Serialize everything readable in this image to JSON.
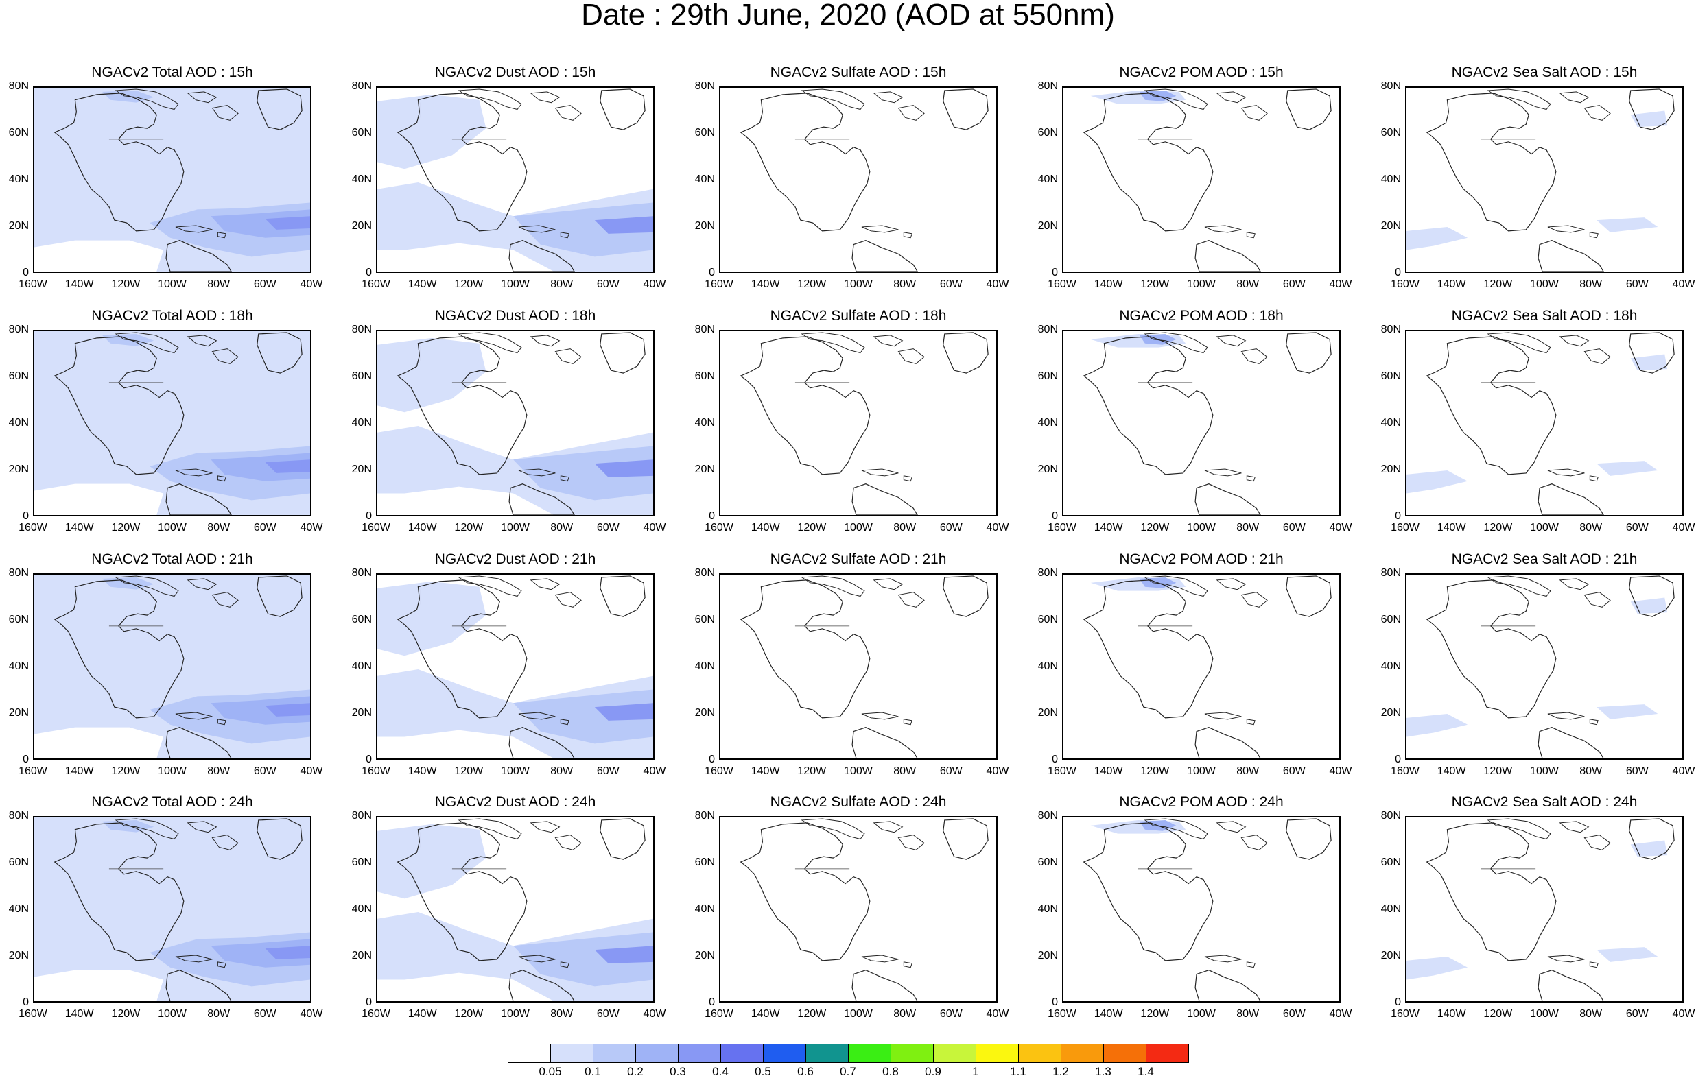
{
  "title": "Date : 29th June, 2020 (AOD at 550nm)",
  "panels": [
    [
      "NGACv2 Total AOD : 15h",
      "NGACv2 Dust AOD : 15h",
      "NGACv2 Sulfate AOD : 15h",
      "NGACv2 POM AOD : 15h",
      "NGACv2 Sea Salt AOD : 15h"
    ],
    [
      "NGACv2 Total AOD : 18h",
      "NGACv2 Dust AOD : 18h",
      "NGACv2 Sulfate AOD : 18h",
      "NGACv2 POM AOD : 18h",
      "NGACv2 Sea Salt AOD : 18h"
    ],
    [
      "NGACv2 Total AOD : 21h",
      "NGACv2 Dust AOD : 21h",
      "NGACv2 Sulfate AOD : 21h",
      "NGACv2 POM AOD : 21h",
      "NGACv2 Sea Salt AOD : 21h"
    ],
    [
      "NGACv2 Total AOD : 24h",
      "NGACv2 Dust AOD : 24h",
      "NGACv2 Sulfate AOD : 24h",
      "NGACv2 POM AOD : 24h",
      "NGACv2 Sea Salt  AOD : 24h"
    ]
  ],
  "axes": {
    "lat_labels": [
      "80N",
      "60N",
      "40N",
      "20N",
      "0"
    ],
    "lon_labels": [
      "160W",
      "140W",
      "120W",
      "100W",
      "80W",
      "60W",
      "40W"
    ]
  },
  "colorbar": {
    "labels": [
      "0.05",
      "0.1",
      "0.2",
      "0.3",
      "0.4",
      "0.5",
      "0.6",
      "0.7",
      "0.8",
      "0.9",
      "1",
      "1.1",
      "1.2",
      "1.3",
      "1.4"
    ],
    "colors": [
      "#ffffff",
      "#d6e0fb",
      "#b8c9f8",
      "#9fb3f6",
      "#8898f4",
      "#6672f0",
      "#1f5df0",
      "#11948f",
      "#3aee14",
      "#7ff011",
      "#c8f53a",
      "#fbf70f",
      "#fbc311",
      "#f99a0c",
      "#f57008",
      "#f42a13"
    ]
  }
}
